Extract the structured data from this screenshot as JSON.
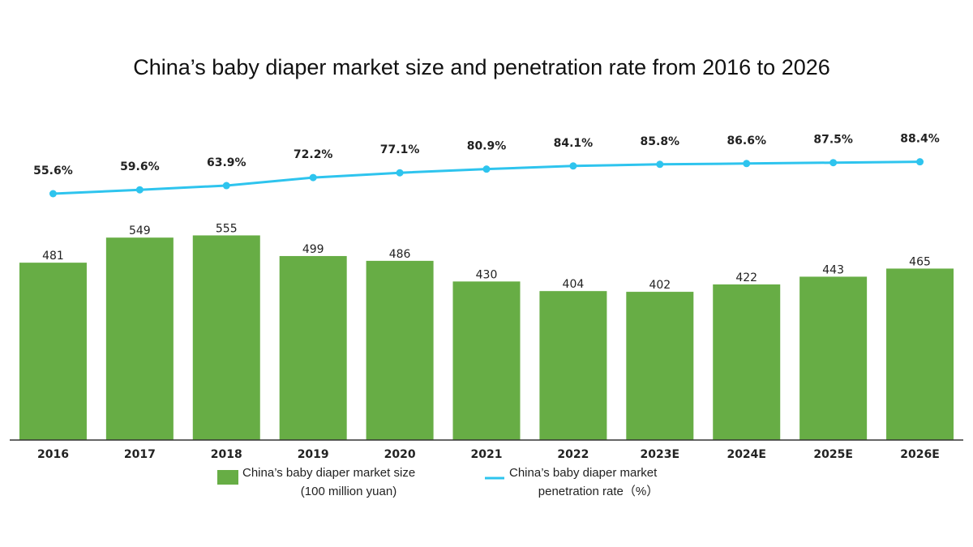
{
  "chart_data": {
    "type": "bar",
    "title": "China’s baby diaper market size and penetration rate from 2016 to 2026",
    "categories": [
      "2016",
      "2017",
      "2018",
      "2019",
      "2020",
      "2021",
      "2022",
      "2023E",
      "2024E",
      "2025E",
      "2026E"
    ],
    "series": [
      {
        "name": "China’s baby diaper market size (100 million yuan)",
        "name_lines": [
          "China’s baby diaper market size",
          "(100 million yuan)"
        ],
        "type": "bar",
        "color": "#67ad45",
        "values": [
          481,
          549,
          555,
          499,
          486,
          430,
          404,
          402,
          422,
          443,
          465
        ],
        "labels": [
          "481",
          "549",
          "555",
          "499",
          "486",
          "430",
          "404",
          "402",
          "422",
          "443",
          "465"
        ]
      },
      {
        "name": "China’s baby diaper market penetration rate（%）",
        "name_lines": [
          "China’s baby diaper market",
          "penetration rate（%）"
        ],
        "type": "line",
        "color": "#2ec4ee",
        "values": [
          55.6,
          59.6,
          63.9,
          72.2,
          77.1,
          80.9,
          84.1,
          85.8,
          86.6,
          87.5,
          88.4
        ],
        "labels": [
          "55.6%",
          "59.6%",
          "63.9%",
          "72.2%",
          "77.1%",
          "80.9%",
          "84.1%",
          "85.8%",
          "86.6%",
          "87.5%",
          "88.4%"
        ]
      }
    ],
    "legend_position": "bottom",
    "grid": false
  }
}
